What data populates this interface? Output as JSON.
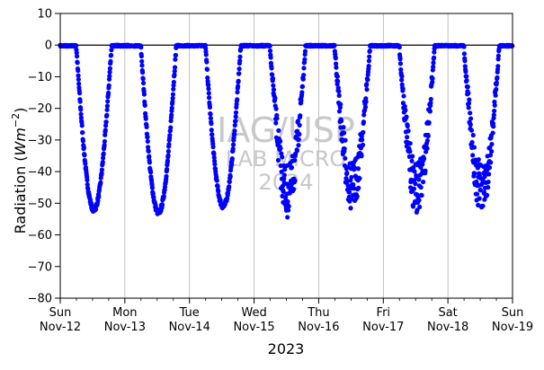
{
  "chart_data": {
    "type": "scatter",
    "ylabel": "Radiation",
    "ylabel_unit": "(Wm^-2)",
    "xlabel": "2023",
    "ylim": [
      -80,
      10
    ],
    "xlim": [
      "2023-11-12",
      "2023-11-19"
    ],
    "yticks": [
      -80,
      -70,
      -60,
      -50,
      -40,
      -30,
      -20,
      -10,
      0,
      10
    ],
    "xtick_days": [
      {
        "weekday": "Sun",
        "date": "Nov-12"
      },
      {
        "weekday": "Mon",
        "date": "Nov-13"
      },
      {
        "weekday": "Tue",
        "date": "Nov-14"
      },
      {
        "weekday": "Wed",
        "date": "Nov-15"
      },
      {
        "weekday": "Thu",
        "date": "Nov-16"
      },
      {
        "weekday": "Fri",
        "date": "Nov-17"
      },
      {
        "weekday": "Sat",
        "date": "Nov-18"
      },
      {
        "weekday": "Sun",
        "date": "Nov-19"
      }
    ],
    "reference_line_y": 0,
    "grid": "vertical at day ticks",
    "marker_color": "#0000ff",
    "watermark": [
      "IAG/USP",
      "LAB MICRO",
      "2024"
    ],
    "series": [
      {
        "daily_minima": [
          {
            "day": "2023-11-12",
            "peak_hour": 12.5,
            "min": -52
          },
          {
            "day": "2023-11-13",
            "peak_hour": 12.5,
            "min": -53
          },
          {
            "day": "2023-11-14",
            "peak_hour": 12.5,
            "min": -51
          },
          {
            "day": "2023-11-15",
            "peak_hour": 12.5,
            "min": -53
          },
          {
            "day": "2023-11-16",
            "peak_hour": 12.5,
            "min": -51
          },
          {
            "day": "2023-11-17",
            "peak_hour": 12.5,
            "min": -52
          },
          {
            "day": "2023-11-18",
            "peak_hour": 12.5,
            "min": -52
          }
        ]
      }
    ]
  }
}
